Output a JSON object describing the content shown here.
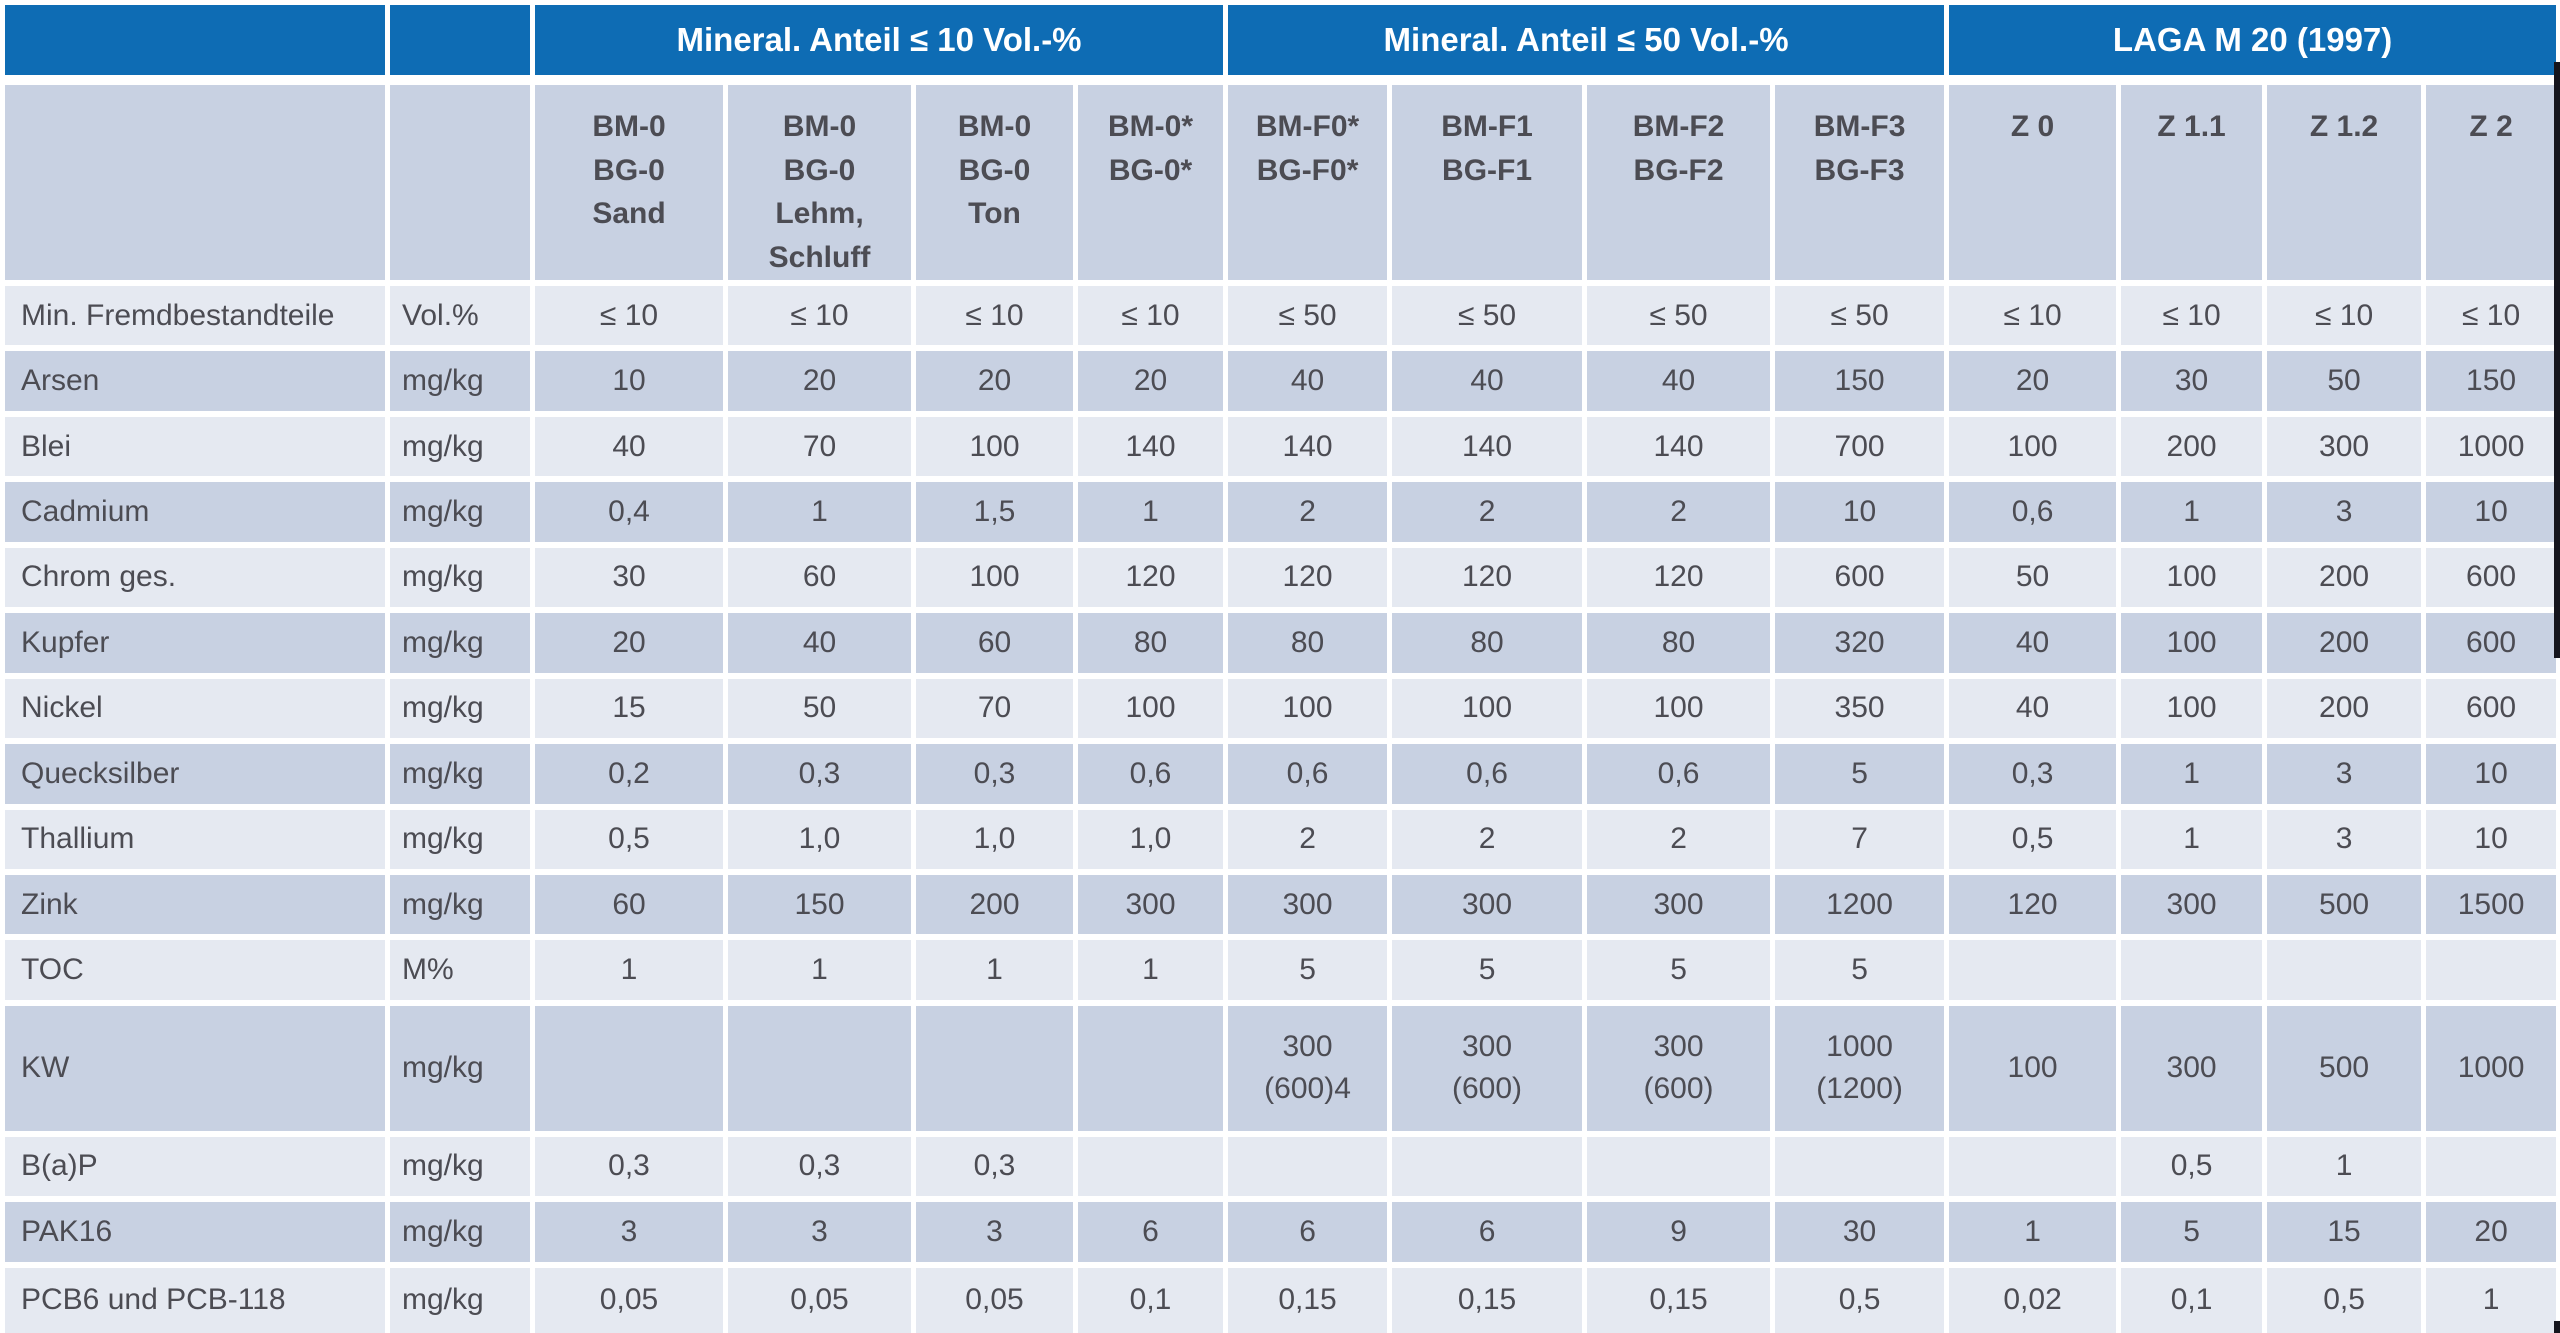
{
  "table": {
    "group_headers": [
      "Mineral. Anteil ≤ 10 Vol.-%",
      "Mineral. Anteil ≤ 50 Vol.-%",
      "LAGA M 20 (1997)"
    ],
    "column_headers": [
      "BM-0\nBG-0\nSand",
      "BM-0\nBG-0\nLehm,\nSchluff",
      "BM-0\nBG-0\nTon",
      "BM-0*\nBG-0*",
      "BM-F0*\nBG-F0*",
      "BM-F1\nBG-F1",
      "BM-F2\nBG-F2",
      "BM-F3\nBG-F3",
      "Z 0",
      "Z 1.1",
      "Z 1.2",
      "Z 2"
    ],
    "rows": [
      {
        "label": "Min. Fremdbestandteile",
        "unit": "Vol.%",
        "values": [
          "≤ 10",
          "≤ 10",
          "≤ 10",
          "≤ 10",
          "≤ 50",
          "≤ 50",
          "≤ 50",
          "≤ 50",
          "≤ 10",
          "≤ 10",
          "≤ 10",
          "≤ 10"
        ]
      },
      {
        "label": "Arsen",
        "unit": "mg/kg",
        "values": [
          "10",
          "20",
          "20",
          "20",
          "40",
          "40",
          "40",
          "150",
          "20",
          "30",
          "50",
          "150"
        ]
      },
      {
        "label": "Blei",
        "unit": "mg/kg",
        "values": [
          "40",
          "70",
          "100",
          "140",
          "140",
          "140",
          "140",
          "700",
          "100",
          "200",
          "300",
          "1000"
        ]
      },
      {
        "label": "Cadmium",
        "unit": "mg/kg",
        "values": [
          "0,4",
          "1",
          "1,5",
          "1",
          "2",
          "2",
          "2",
          "10",
          "0,6",
          "1",
          "3",
          "10"
        ]
      },
      {
        "label": "Chrom ges.",
        "unit": "mg/kg",
        "values": [
          "30",
          "60",
          "100",
          "120",
          "120",
          "120",
          "120",
          "600",
          "50",
          "100",
          "200",
          "600"
        ]
      },
      {
        "label": "Kupfer",
        "unit": "mg/kg",
        "values": [
          "20",
          "40",
          "60",
          "80",
          "80",
          "80",
          "80",
          "320",
          "40",
          "100",
          "200",
          "600"
        ]
      },
      {
        "label": "Nickel",
        "unit": "mg/kg",
        "values": [
          "15",
          "50",
          "70",
          "100",
          "100",
          "100",
          "100",
          "350",
          "40",
          "100",
          "200",
          "600"
        ]
      },
      {
        "label": "Quecksilber",
        "unit": "mg/kg",
        "values": [
          "0,2",
          "0,3",
          "0,3",
          "0,6",
          "0,6",
          "0,6",
          "0,6",
          "5",
          "0,3",
          "1",
          "3",
          "10"
        ]
      },
      {
        "label": "Thallium",
        "unit": "mg/kg",
        "values": [
          "0,5",
          "1,0",
          "1,0",
          "1,0",
          "2",
          "2",
          "2",
          "7",
          "0,5",
          "1",
          "3",
          "10"
        ]
      },
      {
        "label": "Zink",
        "unit": "mg/kg",
        "values": [
          "60",
          "150",
          "200",
          "300",
          "300",
          "300",
          "300",
          "1200",
          "120",
          "300",
          "500",
          "1500"
        ]
      },
      {
        "label": "TOC",
        "unit": "M%",
        "values": [
          "1",
          "1",
          "1",
          "1",
          "5",
          "5",
          "5",
          "5",
          "",
          "",
          "",
          ""
        ]
      },
      {
        "label": "KW",
        "unit": "mg/kg",
        "tall": true,
        "values": [
          "",
          "",
          "",
          "",
          "300\n(600)4",
          "300\n(600)",
          "300\n(600)",
          "1000\n(1200)",
          "100",
          "300",
          "500",
          "1000"
        ]
      },
      {
        "label": "B(a)P",
        "unit": "mg/kg",
        "values": [
          "0,3",
          "0,3",
          "0,3",
          "",
          "",
          "",
          "",
          "",
          "",
          "0,5",
          "1",
          ""
        ]
      },
      {
        "label": "PAK16",
        "unit": "mg/kg",
        "values": [
          "3",
          "3",
          "3",
          "6",
          "6",
          "6",
          "9",
          "30",
          "1",
          "5",
          "15",
          "20"
        ]
      },
      {
        "label": "PCB6 und PCB-118",
        "unit": "mg/kg",
        "values": [
          "0,05",
          "0,05",
          "0,05",
          "0,1",
          "0,15",
          "0,15",
          "0,15",
          "0,5",
          "0,02",
          "0,1",
          "0,5",
          "1"
        ]
      }
    ],
    "colors": {
      "header_blue": "#0e6cb4",
      "row_light": "#e5e9f1",
      "row_dark": "#c8d1e2",
      "text": "#4c4c53"
    }
  }
}
